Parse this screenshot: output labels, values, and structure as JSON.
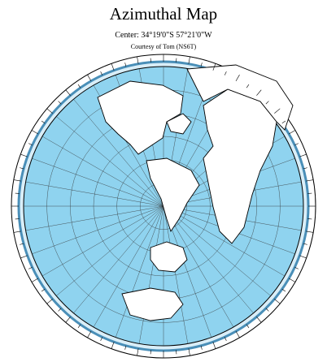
{
  "header": {
    "title": "Azimuthal Map",
    "center": "Center: 34°19'0\"S 57°21'0\"W",
    "credit": "Courtesy of Tom (NS6T)"
  }
}
